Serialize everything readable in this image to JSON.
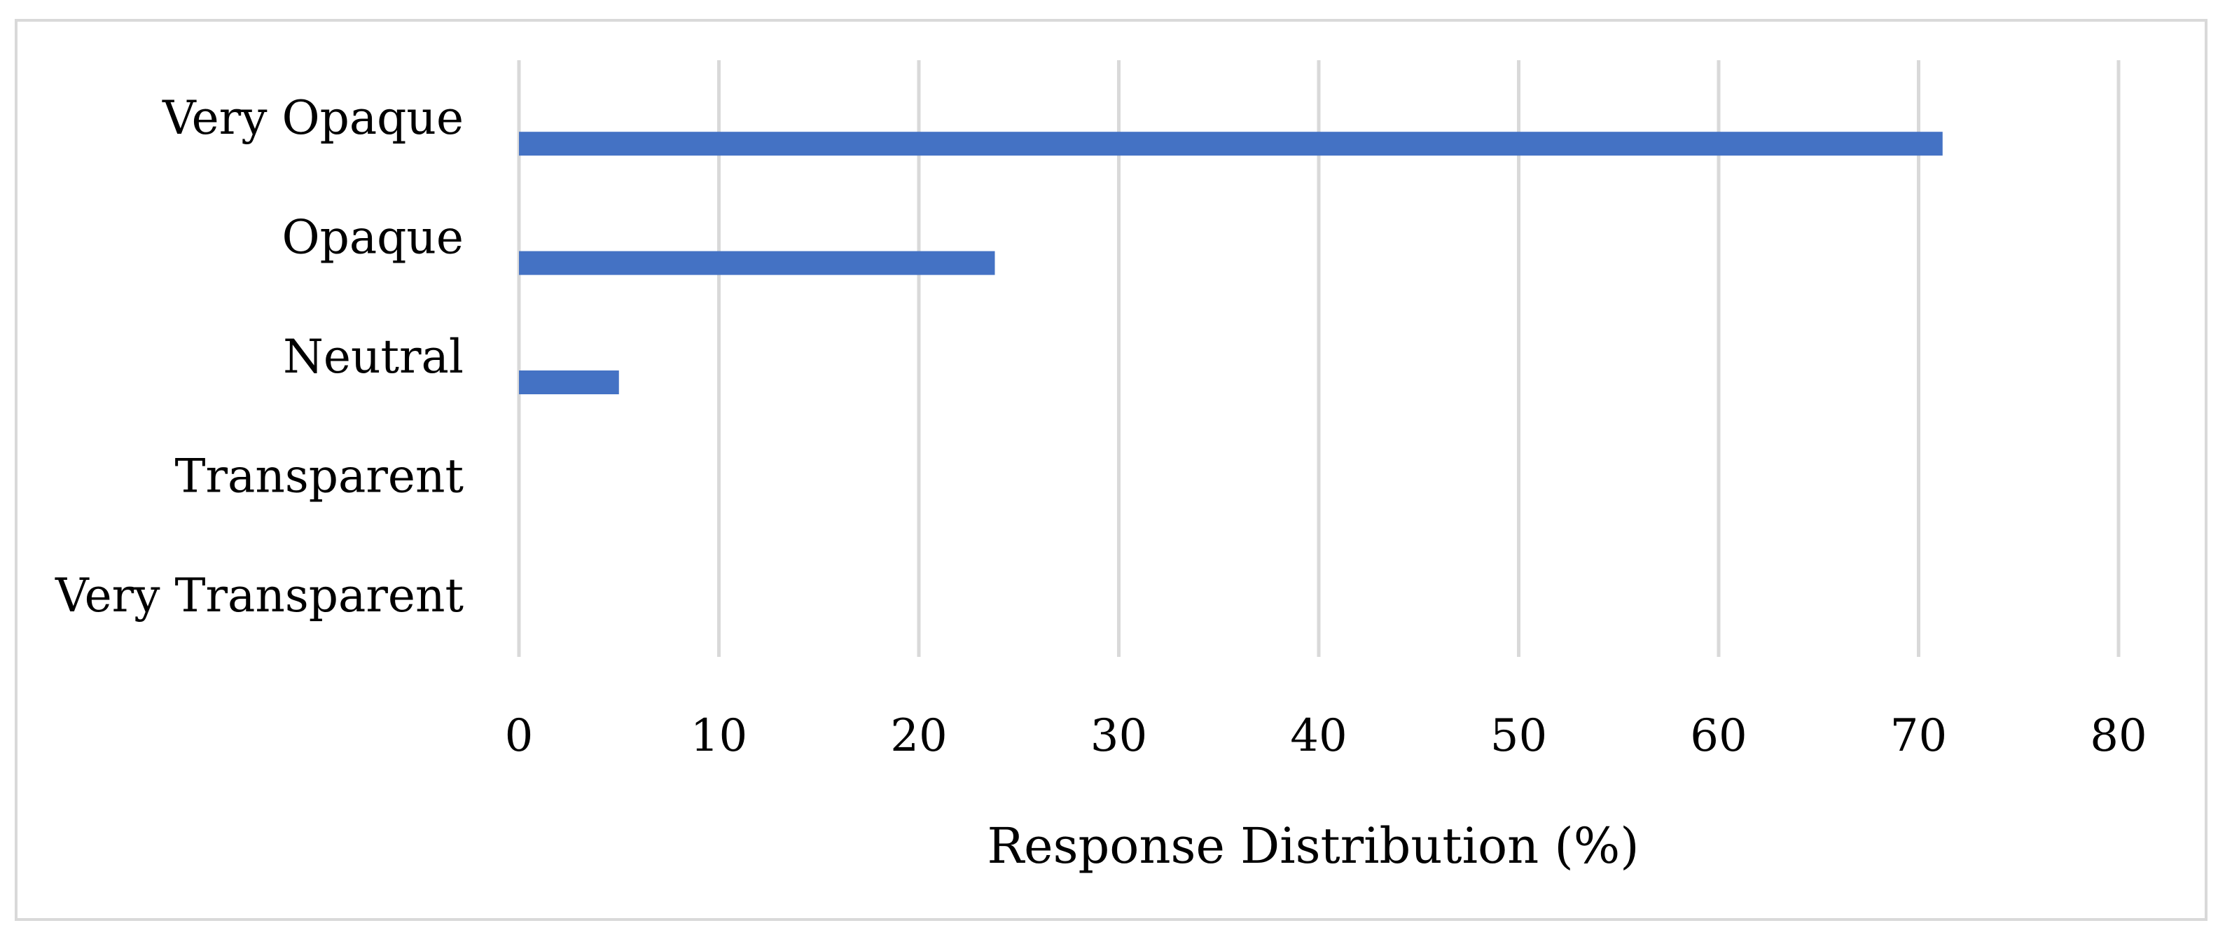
{
  "chart_data": {
    "type": "bar",
    "orientation": "horizontal",
    "categories": [
      "Very Opaque",
      "Opaque",
      "Neutral",
      "Transparent",
      "Very Transparent"
    ],
    "values": [
      71.2,
      23.8,
      5.0,
      0,
      0
    ],
    "xlabel": "Response Distribution (%)",
    "ylabel": "",
    "xlim": [
      0,
      80
    ],
    "xticks": [
      0,
      10,
      20,
      30,
      40,
      50,
      60,
      70,
      80
    ],
    "grid": "vertical",
    "legend": "none",
    "bar_color": "#4472C4",
    "grid_color": "#d9d9d9"
  }
}
